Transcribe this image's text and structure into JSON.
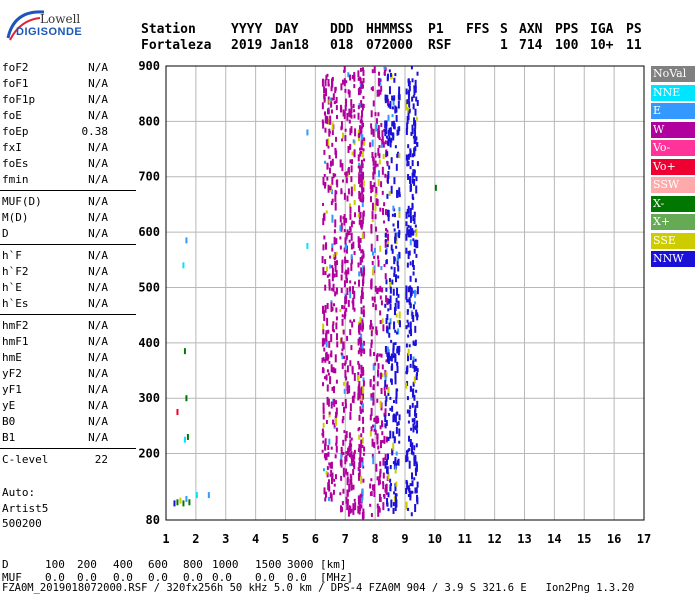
{
  "logo": {
    "line1": "Lowell",
    "line2": "DIGISONDE"
  },
  "header": {
    "labels": [
      "Station",
      "YYYY",
      "DAY",
      "DDD",
      "HHMMSS",
      "P1",
      "FFS",
      "S",
      "AXN",
      "PPS",
      "IGA",
      "PS"
    ],
    "values": [
      "Fortaleza",
      "2019",
      "Jan18",
      "018",
      "072000",
      "RSF",
      "",
      "1",
      "714",
      "100",
      "10+",
      "11"
    ]
  },
  "params": [
    {
      "group": 1,
      "name": "foF2",
      "value": "N/A"
    },
    {
      "group": 1,
      "name": "foF1",
      "value": "N/A"
    },
    {
      "group": 1,
      "name": "foF1p",
      "value": "N/A"
    },
    {
      "group": 1,
      "name": "foE",
      "value": "N/A"
    },
    {
      "group": 1,
      "name": "foEp",
      "value": "0.38"
    },
    {
      "group": 1,
      "name": "fxI",
      "value": "N/A"
    },
    {
      "group": 1,
      "name": "foEs",
      "value": "N/A"
    },
    {
      "group": 1,
      "name": "fmin",
      "value": "N/A"
    },
    {
      "group": 2,
      "name": "MUF(D)",
      "value": "N/A"
    },
    {
      "group": 2,
      "name": "M(D)",
      "value": "N/A"
    },
    {
      "group": 2,
      "name": "D",
      "value": "N/A"
    },
    {
      "group": 3,
      "name": "h`F",
      "value": "N/A"
    },
    {
      "group": 3,
      "name": "h`F2",
      "value": "N/A"
    },
    {
      "group": 3,
      "name": "h`E",
      "value": "N/A"
    },
    {
      "group": 3,
      "name": "h`Es",
      "value": "N/A"
    },
    {
      "group": 4,
      "name": "hmF2",
      "value": "N/A"
    },
    {
      "group": 4,
      "name": "hmF1",
      "value": "N/A"
    },
    {
      "group": 4,
      "name": "hmE",
      "value": "N/A"
    },
    {
      "group": 4,
      "name": "yF2",
      "value": "N/A"
    },
    {
      "group": 4,
      "name": "yF1",
      "value": "N/A"
    },
    {
      "group": 4,
      "name": "yE",
      "value": "N/A"
    },
    {
      "group": 4,
      "name": "B0",
      "value": "N/A"
    },
    {
      "group": 4,
      "name": "B1",
      "value": "N/A"
    },
    {
      "group": 5,
      "name": "C-level",
      "value": "22"
    }
  ],
  "auto": {
    "line1": "Auto:",
    "line2": "Artist5",
    "line3": "500200"
  },
  "legend": [
    {
      "label": "NoVal",
      "color": "#808080"
    },
    {
      "label": "NNE",
      "color": "#00e5ff"
    },
    {
      "label": "E",
      "color": "#3399ff"
    },
    {
      "label": "W",
      "color": "#b0009e"
    },
    {
      "label": "Vo-",
      "color": "#ff3399"
    },
    {
      "label": "Vo+",
      "color": "#ee0033"
    },
    {
      "label": "SSW",
      "color": "#ffaaaa"
    },
    {
      "label": "X-",
      "color": "#007700"
    },
    {
      "label": "X+",
      "color": "#66aa55"
    },
    {
      "label": "SSE",
      "color": "#cccc00"
    },
    {
      "label": "NNW",
      "color": "#1a10d8"
    }
  ],
  "bottom": {
    "d_row": [
      "D",
      "100",
      "200",
      "400",
      "600",
      "800",
      "1000",
      "1500",
      "3000",
      "[km]"
    ],
    "muf_row": [
      "MUF",
      "0.0",
      "0.0",
      "0.0",
      "0.0",
      "0.0",
      "0.0",
      "0.0",
      "0.0",
      "[MHz]"
    ],
    "footer": "FZA0M_2019018072000.RSF / 320fx256h 50 kHz 5.0 km / DPS-4 FZA0M 904 / 3.9 S 321.6 E   Ion2Png 1.3.20"
  },
  "chart_data": {
    "type": "scatter",
    "title": "",
    "xlabel": "",
    "ylabel": "",
    "x_ticks": [
      1,
      2,
      3,
      4,
      5,
      6,
      7,
      8,
      9,
      10,
      11,
      12,
      13,
      14,
      15,
      16,
      17
    ],
    "y_ticks": [
      80,
      200,
      300,
      400,
      500,
      600,
      700,
      800,
      900
    ],
    "xlim": [
      1,
      17
    ],
    "ylim": [
      80,
      900
    ],
    "grid": true,
    "legend_position": "right",
    "bands": [
      {
        "name": "W",
        "color": "#b0009e",
        "xmin": 6.2,
        "xmax": 6.7,
        "ymin": 120,
        "ymax": 900
      },
      {
        "name": "W",
        "color": "#b0009e",
        "xmin": 6.8,
        "xmax": 7.3,
        "ymin": 100,
        "ymax": 900
      },
      {
        "name": "W",
        "color": "#b0009e",
        "xmin": 7.4,
        "xmax": 7.6,
        "ymin": 90,
        "ymax": 900
      },
      {
        "name": "W",
        "color": "#b0009e",
        "xmin": 7.8,
        "xmax": 8.4,
        "ymin": 90,
        "ymax": 900
      },
      {
        "name": "NNW",
        "color": "#1a10d8",
        "xmin": 8.3,
        "xmax": 8.8,
        "ymin": 100,
        "ymax": 900
      },
      {
        "name": "NNW",
        "color": "#1a10d8",
        "xmin": 9.0,
        "xmax": 9.4,
        "ymin": 90,
        "ymax": 900
      }
    ],
    "low_echoes": [
      {
        "x": 1.25,
        "y": 110,
        "color": "#1a10d8"
      },
      {
        "x": 1.35,
        "y": 112,
        "color": "#007700"
      },
      {
        "x": 1.45,
        "y": 115,
        "color": "#cccc00"
      },
      {
        "x": 1.55,
        "y": 110,
        "color": "#007700"
      },
      {
        "x": 1.65,
        "y": 118,
        "color": "#3399ff"
      },
      {
        "x": 1.75,
        "y": 112,
        "color": "#007700"
      },
      {
        "x": 1.6,
        "y": 225,
        "color": "#00e5ff"
      },
      {
        "x": 1.7,
        "y": 230,
        "color": "#007700"
      },
      {
        "x": 1.65,
        "y": 300,
        "color": "#007700"
      },
      {
        "x": 1.6,
        "y": 385,
        "color": "#007700"
      },
      {
        "x": 1.55,
        "y": 540,
        "color": "#00e5ff"
      },
      {
        "x": 1.65,
        "y": 585,
        "color": "#3399ff"
      },
      {
        "x": 1.35,
        "y": 275,
        "color": "#ee0033"
      },
      {
        "x": 2.0,
        "y": 125,
        "color": "#00e5ff"
      },
      {
        "x": 2.4,
        "y": 125,
        "color": "#3399ff"
      },
      {
        "x": 5.7,
        "y": 780,
        "color": "#3399ff"
      },
      {
        "x": 5.7,
        "y": 575,
        "color": "#00e5ff"
      },
      {
        "x": 10.0,
        "y": 680,
        "color": "#007700"
      }
    ]
  }
}
